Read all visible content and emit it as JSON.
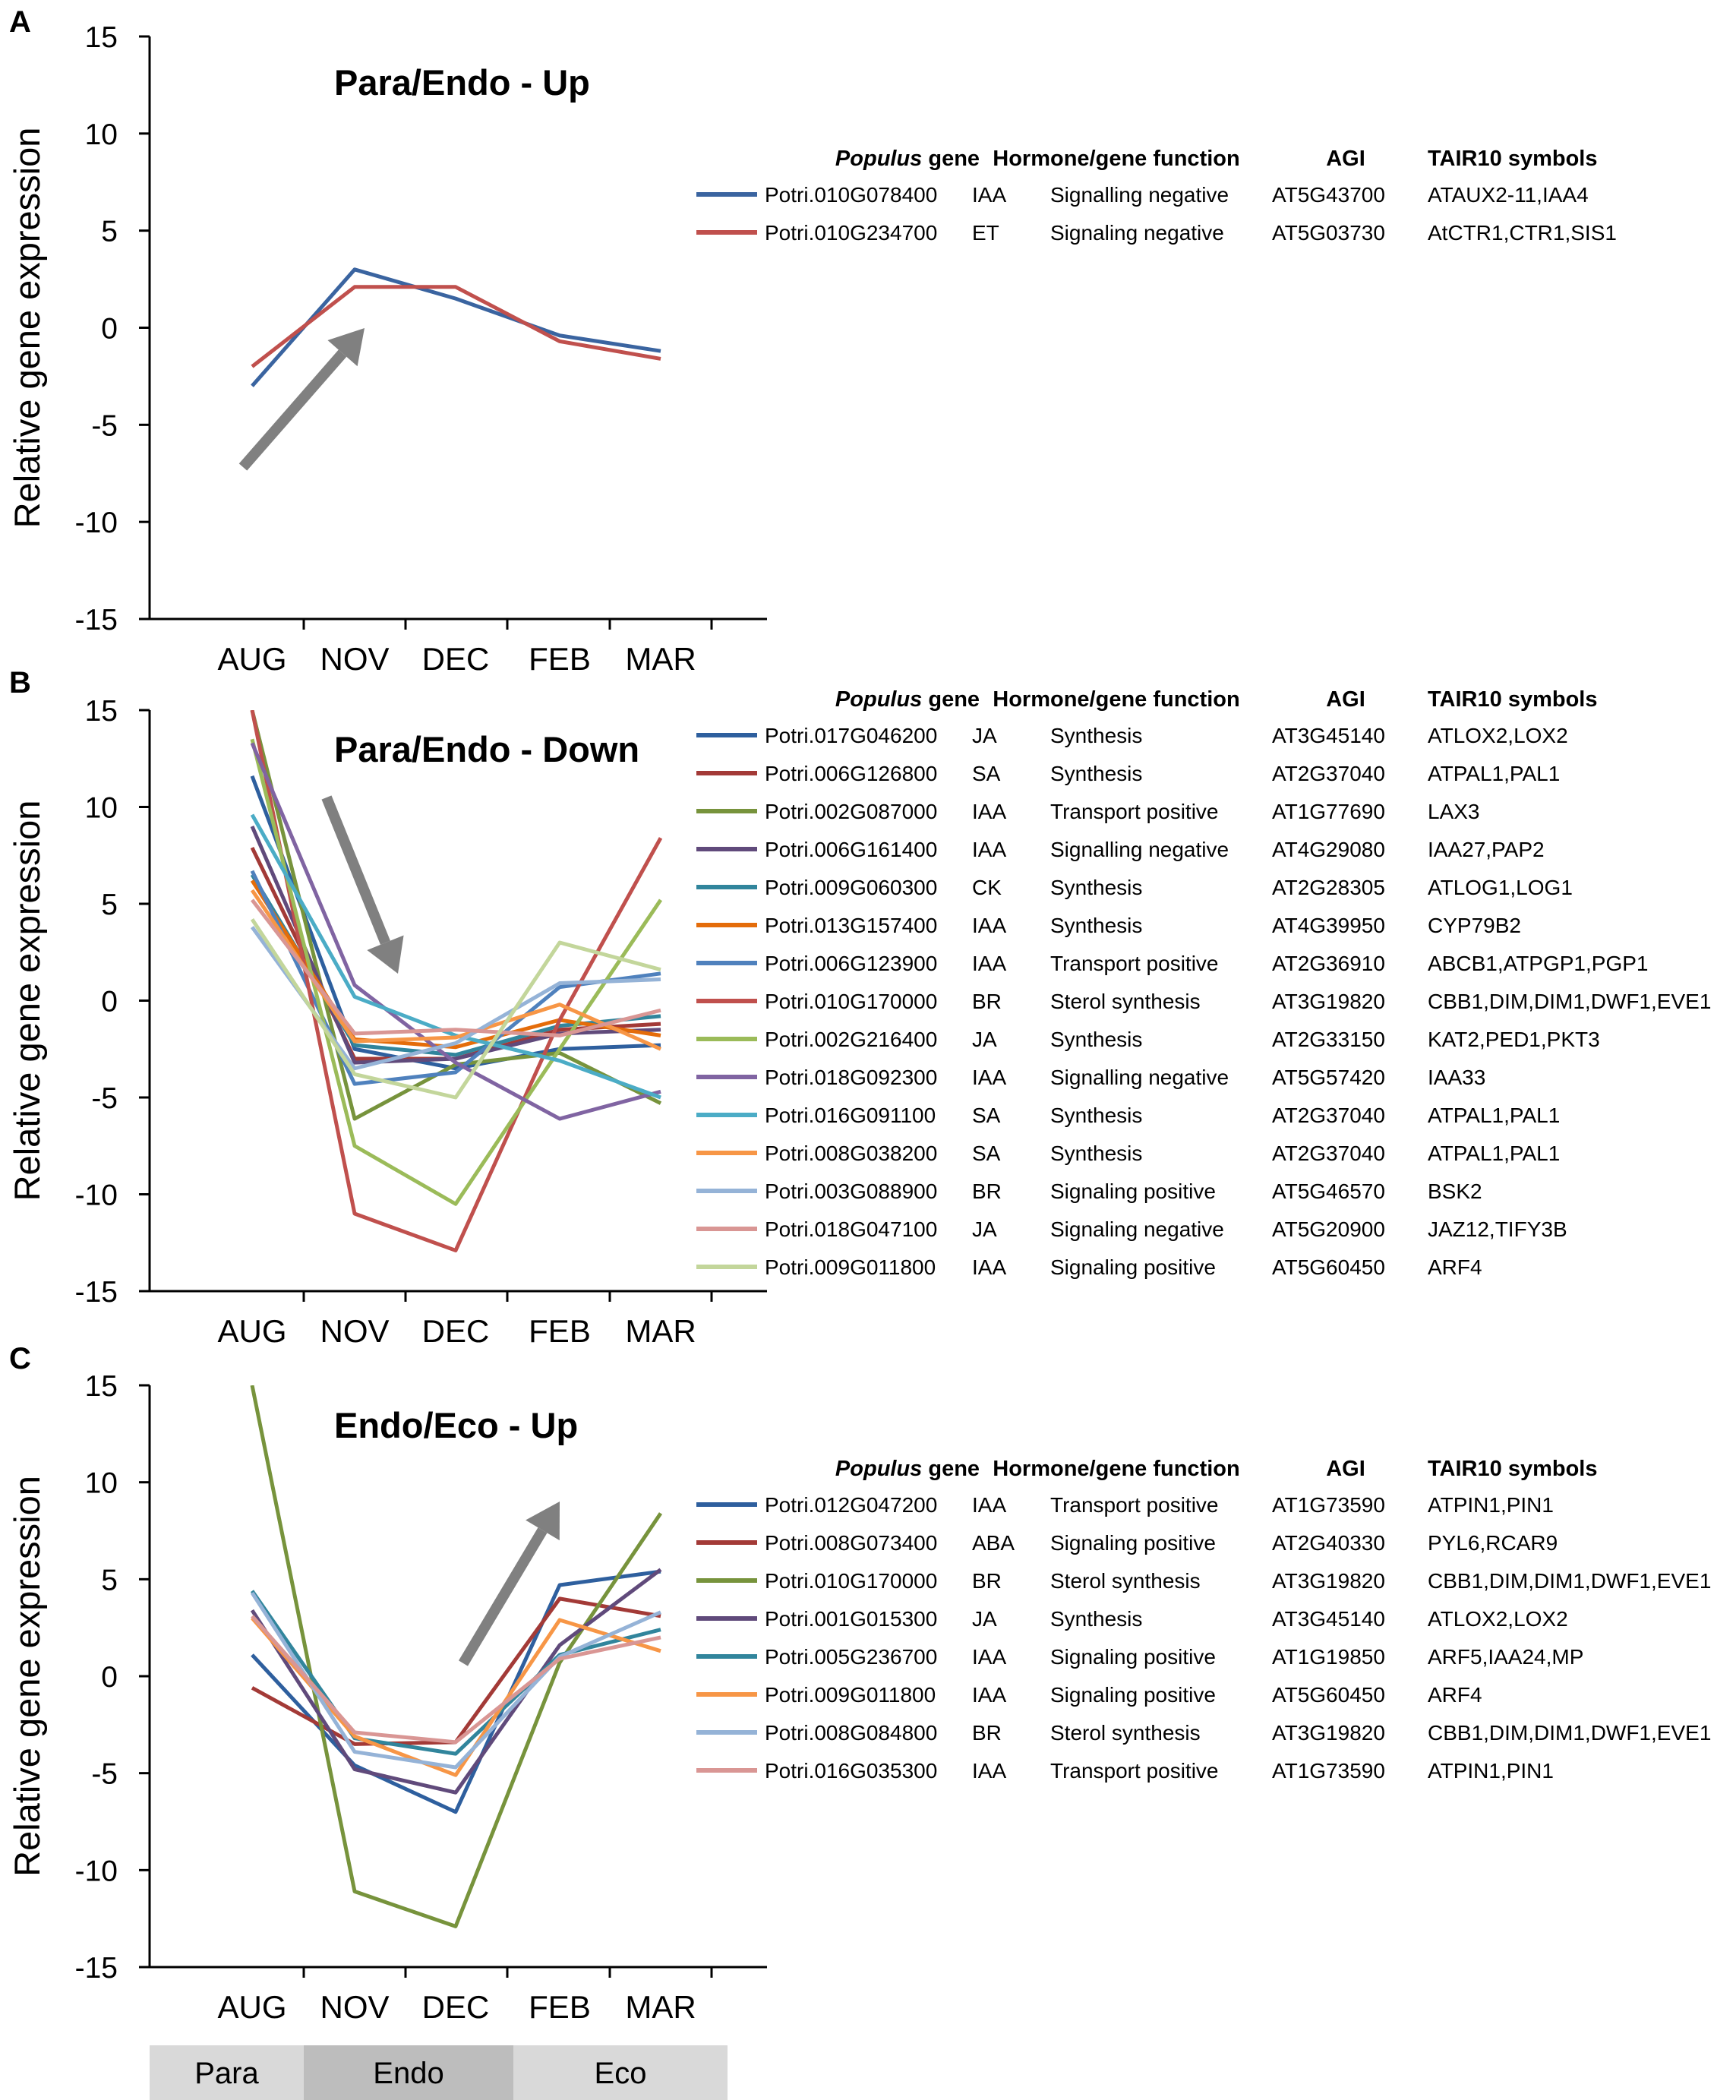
{
  "figure": {
    "y_axis_label": "Relative gene expression",
    "months": [
      "AUG",
      "NOV",
      "DEC",
      "FEB",
      "MAR"
    ],
    "legend_header": {
      "gene_italic": "Populus",
      "gene_rest": " gene",
      "function": "Hormone/gene function",
      "agi": "AGI",
      "symbols": "TAIR10 symbols"
    },
    "phases": [
      {
        "label": "Para",
        "color": "#d9d9d9"
      },
      {
        "label": "Endo",
        "color": "#bdbdbd"
      },
      {
        "label": "Eco",
        "color": "#d9d9d9"
      }
    ],
    "arrow_color": "#808080"
  },
  "chart_data": [
    {
      "type": "line",
      "panel": "A",
      "title": "Para/Endo - Up",
      "ylabel": "Relative gene expression",
      "ylim": [
        -15,
        15
      ],
      "yticks": [
        15,
        10,
        5,
        0,
        -5,
        -10,
        -15
      ],
      "categories": [
        "AUG",
        "NOV",
        "DEC",
        "FEB",
        "MAR"
      ],
      "arrow": "up",
      "series": [
        {
          "gene": "Potri.010G078400",
          "hormone": "IAA",
          "function": "Signalling negative",
          "agi": "AT5G43700",
          "symbols": "ATAUX2-11,IAA4",
          "color": "#3a64a0",
          "values": [
            -3.0,
            3.0,
            1.5,
            -0.4,
            -1.2
          ]
        },
        {
          "gene": "Potri.010G234700",
          "hormone": "ET",
          "function": "Signaling negative",
          "agi": "AT5G03730",
          "symbols": "AtCTR1,CTR1,SIS1",
          "color": "#c0504d",
          "values": [
            -2.0,
            2.1,
            2.1,
            -0.7,
            -1.6
          ]
        }
      ]
    },
    {
      "type": "line",
      "panel": "B",
      "title": "Para/Endo - Down",
      "ylabel": "Relative gene expression",
      "ylim": [
        -15,
        15
      ],
      "yticks": [
        15,
        10,
        5,
        0,
        -5,
        -10,
        -15
      ],
      "categories": [
        "AUG",
        "NOV",
        "DEC",
        "FEB",
        "MAR"
      ],
      "arrow": "down",
      "series": [
        {
          "gene": "Potri.017G046200",
          "hormone": "JA",
          "function": "Synthesis",
          "agi": "AT3G45140",
          "symbols": "ATLOX2,LOX2",
          "color": "#2e5f9e",
          "values": [
            11.6,
            -2.5,
            -3.5,
            -2.5,
            -2.3
          ]
        },
        {
          "gene": "Potri.006G126800",
          "hormone": "SA",
          "function": "Synthesis",
          "agi": "AT2G37040",
          "symbols": "ATPAL1,PAL1",
          "color": "#a33a37",
          "values": [
            7.9,
            -3.0,
            -3.0,
            -1.5,
            -1.2
          ]
        },
        {
          "gene": "Potri.002G087000",
          "hormone": "IAA",
          "function": "Transport positive",
          "agi": "AT1G77690",
          "symbols": "LAX3",
          "color": "#77933c",
          "values": [
            15.0,
            -6.1,
            -3.3,
            -2.7,
            -5.3
          ]
        },
        {
          "gene": "Potri.006G161400",
          "hormone": "IAA",
          "function": "Signalling negative",
          "agi": "AT4G29080",
          "symbols": "IAA27,PAP2",
          "color": "#604a7b",
          "values": [
            9.0,
            -3.2,
            -3.0,
            -1.7,
            -1.5
          ]
        },
        {
          "gene": "Potri.009G060300",
          "hormone": "CK",
          "function": "Synthesis",
          "agi": "AT2G28305",
          "symbols": "ATLOG1,LOG1",
          "color": "#31859c",
          "values": [
            6.5,
            -2.3,
            -2.8,
            -1.3,
            -0.8
          ]
        },
        {
          "gene": "Potri.013G157400",
          "hormone": "IAA",
          "function": "Synthesis",
          "agi": "AT4G39950",
          "symbols": "CYP79B2",
          "color": "#e46c0a",
          "values": [
            6.2,
            -2.0,
            -2.4,
            -1.0,
            -1.8
          ]
        },
        {
          "gene": "Potri.006G123900",
          "hormone": "IAA",
          "function": "Transport positive",
          "agi": "AT2G36910",
          "symbols": "ABCB1,ATPGP1,PGP1",
          "color": "#4f81bd",
          "values": [
            6.7,
            -4.3,
            -3.7,
            0.7,
            1.4
          ]
        },
        {
          "gene": "Potri.010G170000",
          "hormone": "BR",
          "function": "Sterol synthesis",
          "agi": "AT3G19820",
          "symbols": "CBB1,DIM,DIM1,DWF1,EVE1",
          "color": "#c0504d",
          "values": [
            15.0,
            -11.0,
            -12.9,
            -1.0,
            8.4
          ]
        },
        {
          "gene": "Potri.002G216400",
          "hormone": "JA",
          "function": "Synthesis",
          "agi": "AT2G33150",
          "symbols": "KAT2,PED1,PKT3",
          "color": "#9bbb59",
          "values": [
            13.5,
            -7.5,
            -10.5,
            -2.5,
            5.2
          ]
        },
        {
          "gene": "Potri.018G092300",
          "hormone": "IAA",
          "function": "Signalling negative",
          "agi": "AT5G57420",
          "symbols": "IAA33",
          "color": "#8064a2",
          "values": [
            13.3,
            0.8,
            -3.2,
            -6.1,
            -4.7
          ]
        },
        {
          "gene": "Potri.016G091100",
          "hormone": "SA",
          "function": "Synthesis",
          "agi": "AT2G37040",
          "symbols": "ATPAL1,PAL1",
          "color": "#4bacc6",
          "values": [
            9.6,
            0.2,
            -1.8,
            -3.1,
            -5.0
          ]
        },
        {
          "gene": "Potri.008G038200",
          "hormone": "SA",
          "function": "Synthesis",
          "agi": "AT2G37040",
          "symbols": "ATPAL1,PAL1",
          "color": "#f79646",
          "values": [
            5.7,
            -2.1,
            -1.9,
            -0.2,
            -2.5
          ]
        },
        {
          "gene": "Potri.003G088900",
          "hormone": "BR",
          "function": "Signaling positive",
          "agi": "AT5G46570",
          "symbols": "BSK2",
          "color": "#95b3d7",
          "values": [
            3.8,
            -3.5,
            -2.2,
            0.9,
            1.1
          ]
        },
        {
          "gene": "Potri.018G047100",
          "hormone": "JA",
          "function": "Signaling negative",
          "agi": "AT5G20900",
          "symbols": "JAZ12,TIFY3B",
          "color": "#d99694",
          "values": [
            5.2,
            -1.7,
            -1.5,
            -1.8,
            -0.5
          ]
        },
        {
          "gene": "Potri.009G011800",
          "hormone": "IAA",
          "function": "Signaling positive",
          "agi": "AT5G60450",
          "symbols": "ARF4",
          "color": "#c3d69b",
          "values": [
            4.2,
            -3.8,
            -5.0,
            3.0,
            1.6
          ]
        }
      ]
    },
    {
      "type": "line",
      "panel": "C",
      "title": "Endo/Eco - Up",
      "ylabel": "Relative gene expression",
      "ylim": [
        -15,
        15
      ],
      "yticks": [
        15,
        10,
        5,
        0,
        -5,
        -10,
        -15
      ],
      "categories": [
        "AUG",
        "NOV",
        "DEC",
        "FEB",
        "MAR"
      ],
      "arrow": "up",
      "series": [
        {
          "gene": "Potri.012G047200",
          "hormone": "IAA",
          "function": "Transport positive",
          "agi": "AT1G73590",
          "symbols": "ATPIN1,PIN1",
          "color": "#2e5f9e",
          "values": [
            1.1,
            -4.6,
            -7.0,
            4.7,
            5.4
          ]
        },
        {
          "gene": "Potri.008G073400",
          "hormone": "ABA",
          "function": "Signaling positive",
          "agi": "AT2G40330",
          "symbols": "PYL6,RCAR9",
          "color": "#a33a37",
          "values": [
            -0.6,
            -3.5,
            -3.4,
            4.0,
            3.1
          ]
        },
        {
          "gene": "Potri.010G170000",
          "hormone": "BR",
          "function": "Sterol synthesis",
          "agi": "AT3G19820",
          "symbols": "CBB1,DIM,DIM1,DWF1,EVE1",
          "color": "#77933c",
          "values": [
            15.0,
            -11.1,
            -12.9,
            0.7,
            8.4
          ]
        },
        {
          "gene": "Potri.001G015300",
          "hormone": "JA",
          "function": "Synthesis",
          "agi": "AT3G45140",
          "symbols": "ATLOX2,LOX2",
          "color": "#604a7b",
          "values": [
            3.4,
            -4.8,
            -6.0,
            1.6,
            5.5
          ]
        },
        {
          "gene": "Potri.005G236700",
          "hormone": "IAA",
          "function": "Signaling positive",
          "agi": "AT1G19850",
          "symbols": "ARF5,IAA24,MP",
          "color": "#31859c",
          "values": [
            4.4,
            -3.2,
            -4.0,
            1.1,
            2.4
          ]
        },
        {
          "gene": "Potri.009G011800",
          "hormone": "IAA",
          "function": "Signaling positive",
          "agi": "AT5G60450",
          "symbols": "ARF4",
          "color": "#f79646",
          "values": [
            3.0,
            -3.1,
            -5.1,
            2.9,
            1.3
          ]
        },
        {
          "gene": "Potri.008G084800",
          "hormone": "BR",
          "function": "Sterol synthesis",
          "agi": "AT3G19820",
          "symbols": "CBB1,DIM,DIM1,DWF1,EVE1",
          "color": "#95b3d7",
          "values": [
            4.3,
            -3.9,
            -4.7,
            1.0,
            3.3
          ]
        },
        {
          "gene": "Potri.016G035300",
          "hormone": "IAA",
          "function": "Transport positive",
          "agi": "AT1G73590",
          "symbols": "ATPIN1,PIN1",
          "color": "#d99694",
          "values": [
            3.1,
            -2.9,
            -3.4,
            0.9,
            2.0
          ]
        }
      ]
    }
  ]
}
